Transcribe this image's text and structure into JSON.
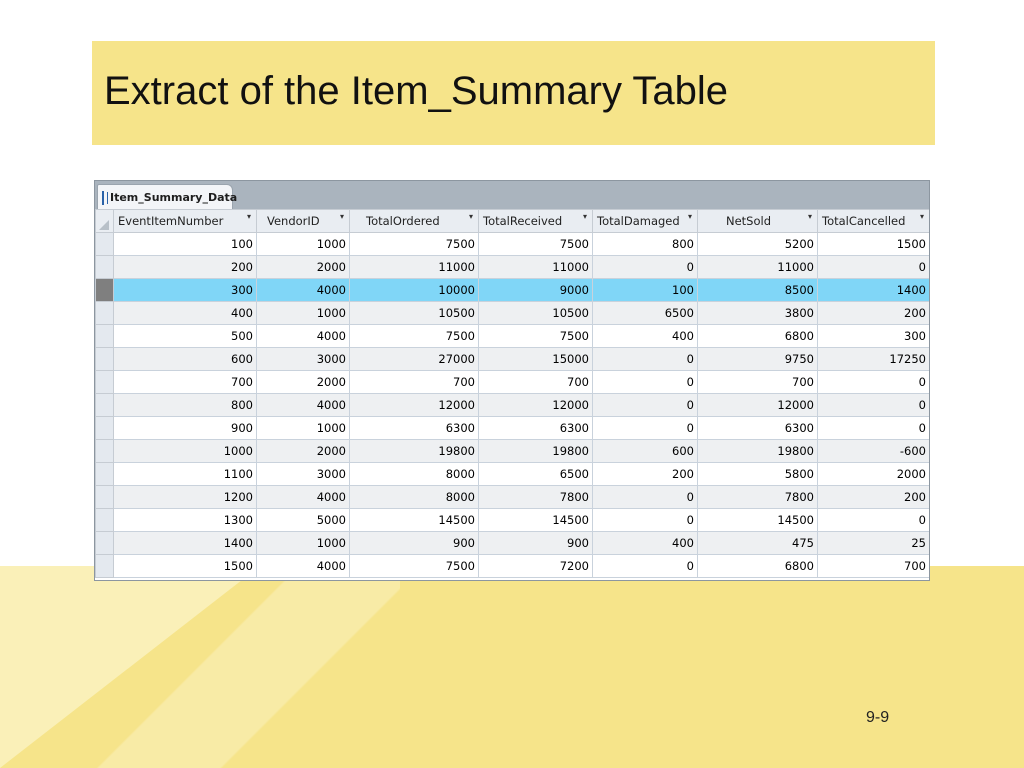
{
  "slide": {
    "title": "Extract of the Item_Summary Table",
    "page_number": "9-9"
  },
  "window": {
    "tab_label": "Item_Summary_Data",
    "tab_icon": "table-icon"
  },
  "table": {
    "columns": [
      "EventItemNumber",
      "VendorID",
      "TotalOrdered",
      "TotalReceived",
      "TotalDamaged",
      "NetSold",
      "TotalCancelled"
    ],
    "sort_arrow": "▾",
    "selected_row_index": 2,
    "rows": [
      [
        "100",
        "1000",
        "7500",
        "7500",
        "800",
        "5200",
        "1500"
      ],
      [
        "200",
        "2000",
        "11000",
        "11000",
        "0",
        "11000",
        "0"
      ],
      [
        "300",
        "4000",
        "10000",
        "9000",
        "100",
        "8500",
        "1400"
      ],
      [
        "400",
        "1000",
        "10500",
        "10500",
        "6500",
        "3800",
        "200"
      ],
      [
        "500",
        "4000",
        "7500",
        "7500",
        "400",
        "6800",
        "300"
      ],
      [
        "600",
        "3000",
        "27000",
        "15000",
        "0",
        "9750",
        "17250"
      ],
      [
        "700",
        "2000",
        "700",
        "700",
        "0",
        "700",
        "0"
      ],
      [
        "800",
        "4000",
        "12000",
        "12000",
        "0",
        "12000",
        "0"
      ],
      [
        "900",
        "1000",
        "6300",
        "6300",
        "0",
        "6300",
        "0"
      ],
      [
        "1000",
        "2000",
        "19800",
        "19800",
        "600",
        "19800",
        "-600"
      ],
      [
        "1100",
        "3000",
        "8000",
        "6500",
        "200",
        "5800",
        "2000"
      ],
      [
        "1200",
        "4000",
        "8000",
        "7800",
        "0",
        "7800",
        "200"
      ],
      [
        "1300",
        "5000",
        "14500",
        "14500",
        "0",
        "14500",
        "0"
      ],
      [
        "1400",
        "1000",
        "900",
        "900",
        "400",
        "475",
        "25"
      ],
      [
        "1500",
        "4000",
        "7500",
        "7200",
        "0",
        "6800",
        "700"
      ]
    ]
  },
  "colors": {
    "slide_accent": "#f6e48a",
    "selected_row": "#80d6f7"
  }
}
